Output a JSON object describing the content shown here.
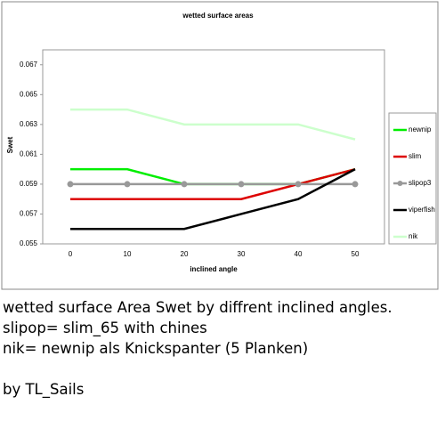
{
  "chart_data": {
    "type": "line",
    "title": "wetted surface areas",
    "x_label": "inclined angle",
    "y_label": "Swet",
    "categories": [
      "0",
      "10",
      "20",
      "30",
      "40",
      "50"
    ],
    "series": [
      {
        "name": "newnip",
        "color": "#00ee00",
        "values": [
          0.06,
          0.06,
          0.059,
          0.059,
          0.059,
          0.06
        ]
      },
      {
        "name": "slim",
        "color": "#dd0000",
        "values": [
          0.058,
          0.058,
          0.058,
          0.058,
          0.059,
          0.06
        ]
      },
      {
        "name": "slipop3",
        "color": "#999999",
        "marker": "circle",
        "values": [
          0.059,
          0.059,
          0.059,
          0.059,
          0.059,
          0.059
        ]
      },
      {
        "name": "viperfish",
        "color": "#000000",
        "values": [
          0.056,
          0.056,
          0.056,
          0.057,
          0.058,
          0.06
        ]
      },
      {
        "name": "nik",
        "color": "#ccffcc",
        "values": [
          0.064,
          0.064,
          0.063,
          0.063,
          0.063,
          0.062
        ]
      }
    ],
    "ylim": [
      0.055,
      0.068
    ],
    "yticks": [
      0.055,
      0.057,
      0.059,
      0.061,
      0.063,
      0.065,
      0.067
    ],
    "grid": false,
    "legend": "right"
  },
  "caption": {
    "lines": [
      "wetted surface Area Swet by diffrent inclined angles.",
      "slipop= slim_65 with chines",
      "nik= newnip als Knickspanter (5 Planken)"
    ],
    "author": "by TL_Sails"
  }
}
